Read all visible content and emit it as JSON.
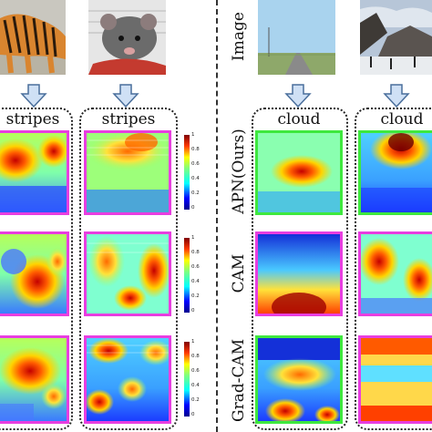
{
  "figure": {
    "header_label": "Image",
    "columns": [
      {
        "id": "tiger",
        "attribute": "stripes"
      },
      {
        "id": "rat",
        "attribute": "stripes"
      },
      {
        "id": "road",
        "attribute": "cloud"
      },
      {
        "id": "mountain",
        "attribute": "cloud"
      }
    ],
    "methods": [
      "APN(Ours)",
      "CAM",
      "Grad-CAM"
    ],
    "method_frame_colors": {
      "left": [
        "#e83ee0",
        "#e83ee0",
        "#e83ee0"
      ],
      "right": [
        "#3ee83e",
        "#e83ee0",
        "#3ee83e"
      ],
      "right_col2": [
        "#3ee83e",
        "#e83ee0",
        "#e83ee0"
      ]
    },
    "colorbar_ticks": [
      "1",
      "0.8",
      "0.6",
      "0.4",
      "0.2",
      "0"
    ]
  }
}
